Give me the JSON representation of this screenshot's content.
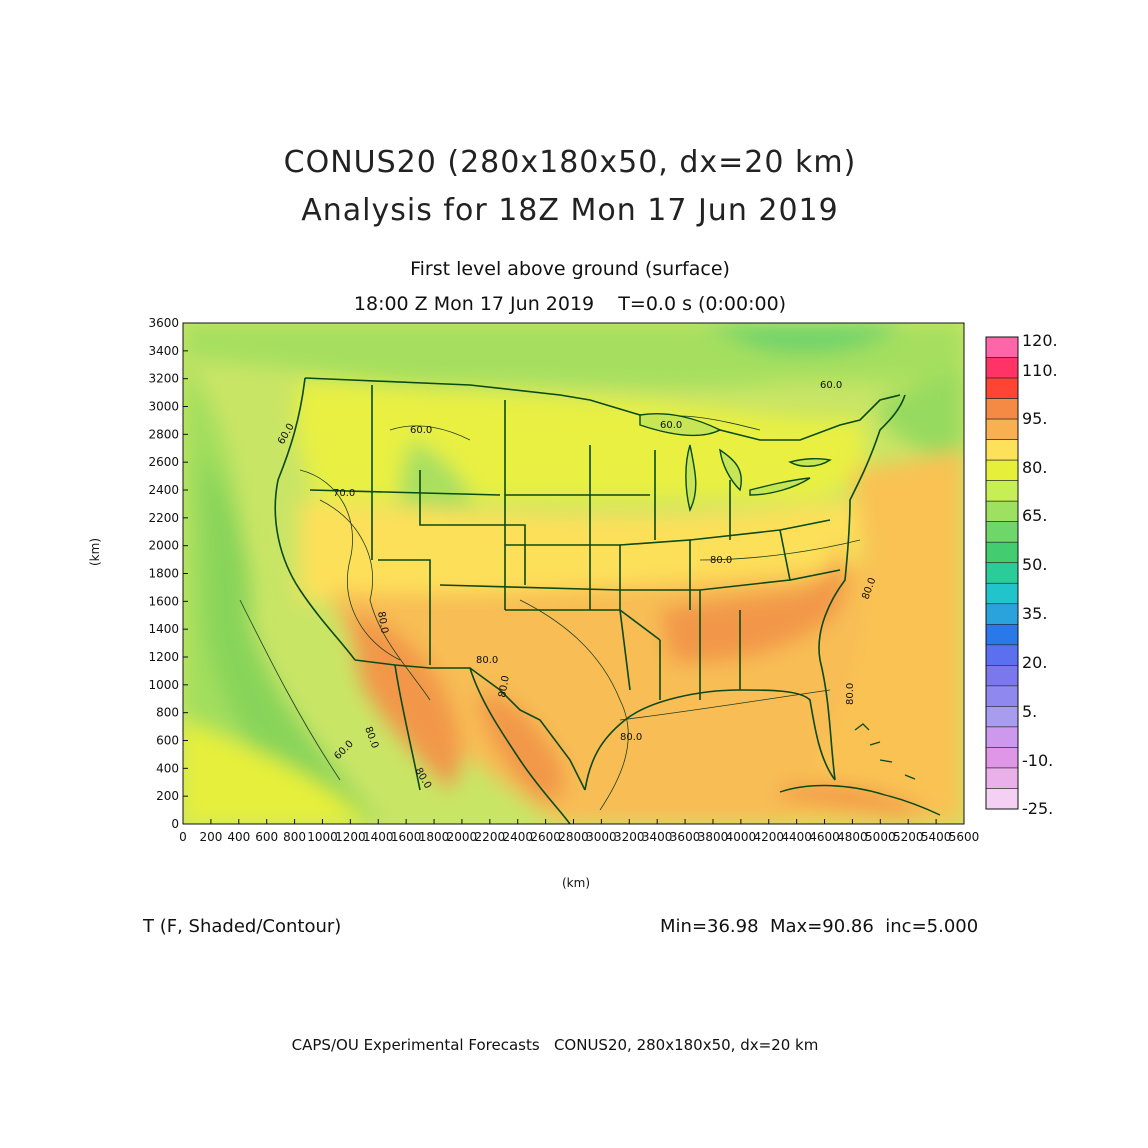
{
  "header": {
    "title_line1": "CONUS20 (280x180x50, dx=20 km)",
    "title_line2": "Analysis for 18Z Mon 17 Jun 2019",
    "subtitle_line1": "First level above ground (surface)",
    "subtitle_line2": "18:00 Z Mon 17 Jun 2019    T=0.0 s (0:00:00)"
  },
  "axes": {
    "y_label": "(km)",
    "x_label": "(km)",
    "y_ticks": [
      "0",
      "200",
      "400",
      "600",
      "800",
      "1000",
      "1200",
      "1400",
      "1600",
      "1800",
      "2000",
      "2200",
      "2400",
      "2600",
      "2800",
      "3000",
      "3200",
      "3400",
      "3600"
    ],
    "x_ticks": [
      "0",
      "200",
      "400",
      "600",
      "800",
      "1000",
      "1200",
      "1400",
      "1600",
      "1800",
      "2000",
      "2200",
      "2400",
      "2600",
      "2800",
      "3000",
      "3200",
      "3400",
      "3600",
      "3800",
      "4000",
      "4200",
      "4400",
      "4600",
      "4800",
      "5000",
      "5200",
      "5400",
      "5600"
    ],
    "xlim": [
      0,
      5600
    ],
    "ylim": [
      0,
      3600
    ]
  },
  "colorbar": {
    "labels": [
      "120.",
      "110.",
      "95.",
      "80.",
      "65.",
      "50.",
      "35.",
      "20.",
      "5.",
      "-10.",
      "-25."
    ],
    "colors": [
      "#ff66aa",
      "#ff3366",
      "#ff4433",
      "#f58a44",
      "#f8b050",
      "#fde15a",
      "#e6f03a",
      "#c6ee55",
      "#9ee060",
      "#6fd66a",
      "#44cc70",
      "#2acc9a",
      "#22c4cc",
      "#2aa3dd",
      "#2b78e8",
      "#5b70ee",
      "#7b78ee",
      "#8f88ee",
      "#a89cee",
      "#cc99ee",
      "#e096e6",
      "#eab0ea",
      "#f5d0f5"
    ]
  },
  "contour_labels": [
    "60.0",
    "60.0",
    "60.0",
    "60.0",
    "70.0",
    "80.0",
    "80.0",
    "80.0",
    "80.0",
    "80.0",
    "80.0",
    "80.0",
    "80.0",
    "60.0",
    "80.0"
  ],
  "footer": {
    "field": "T (F, Shaded/Contour)",
    "stats": "Min=36.98  Max=90.86  inc=5.000",
    "credit": "CAPS/OU Experimental Forecasts   CONUS20, 280x180x50, dx=20 km"
  }
}
